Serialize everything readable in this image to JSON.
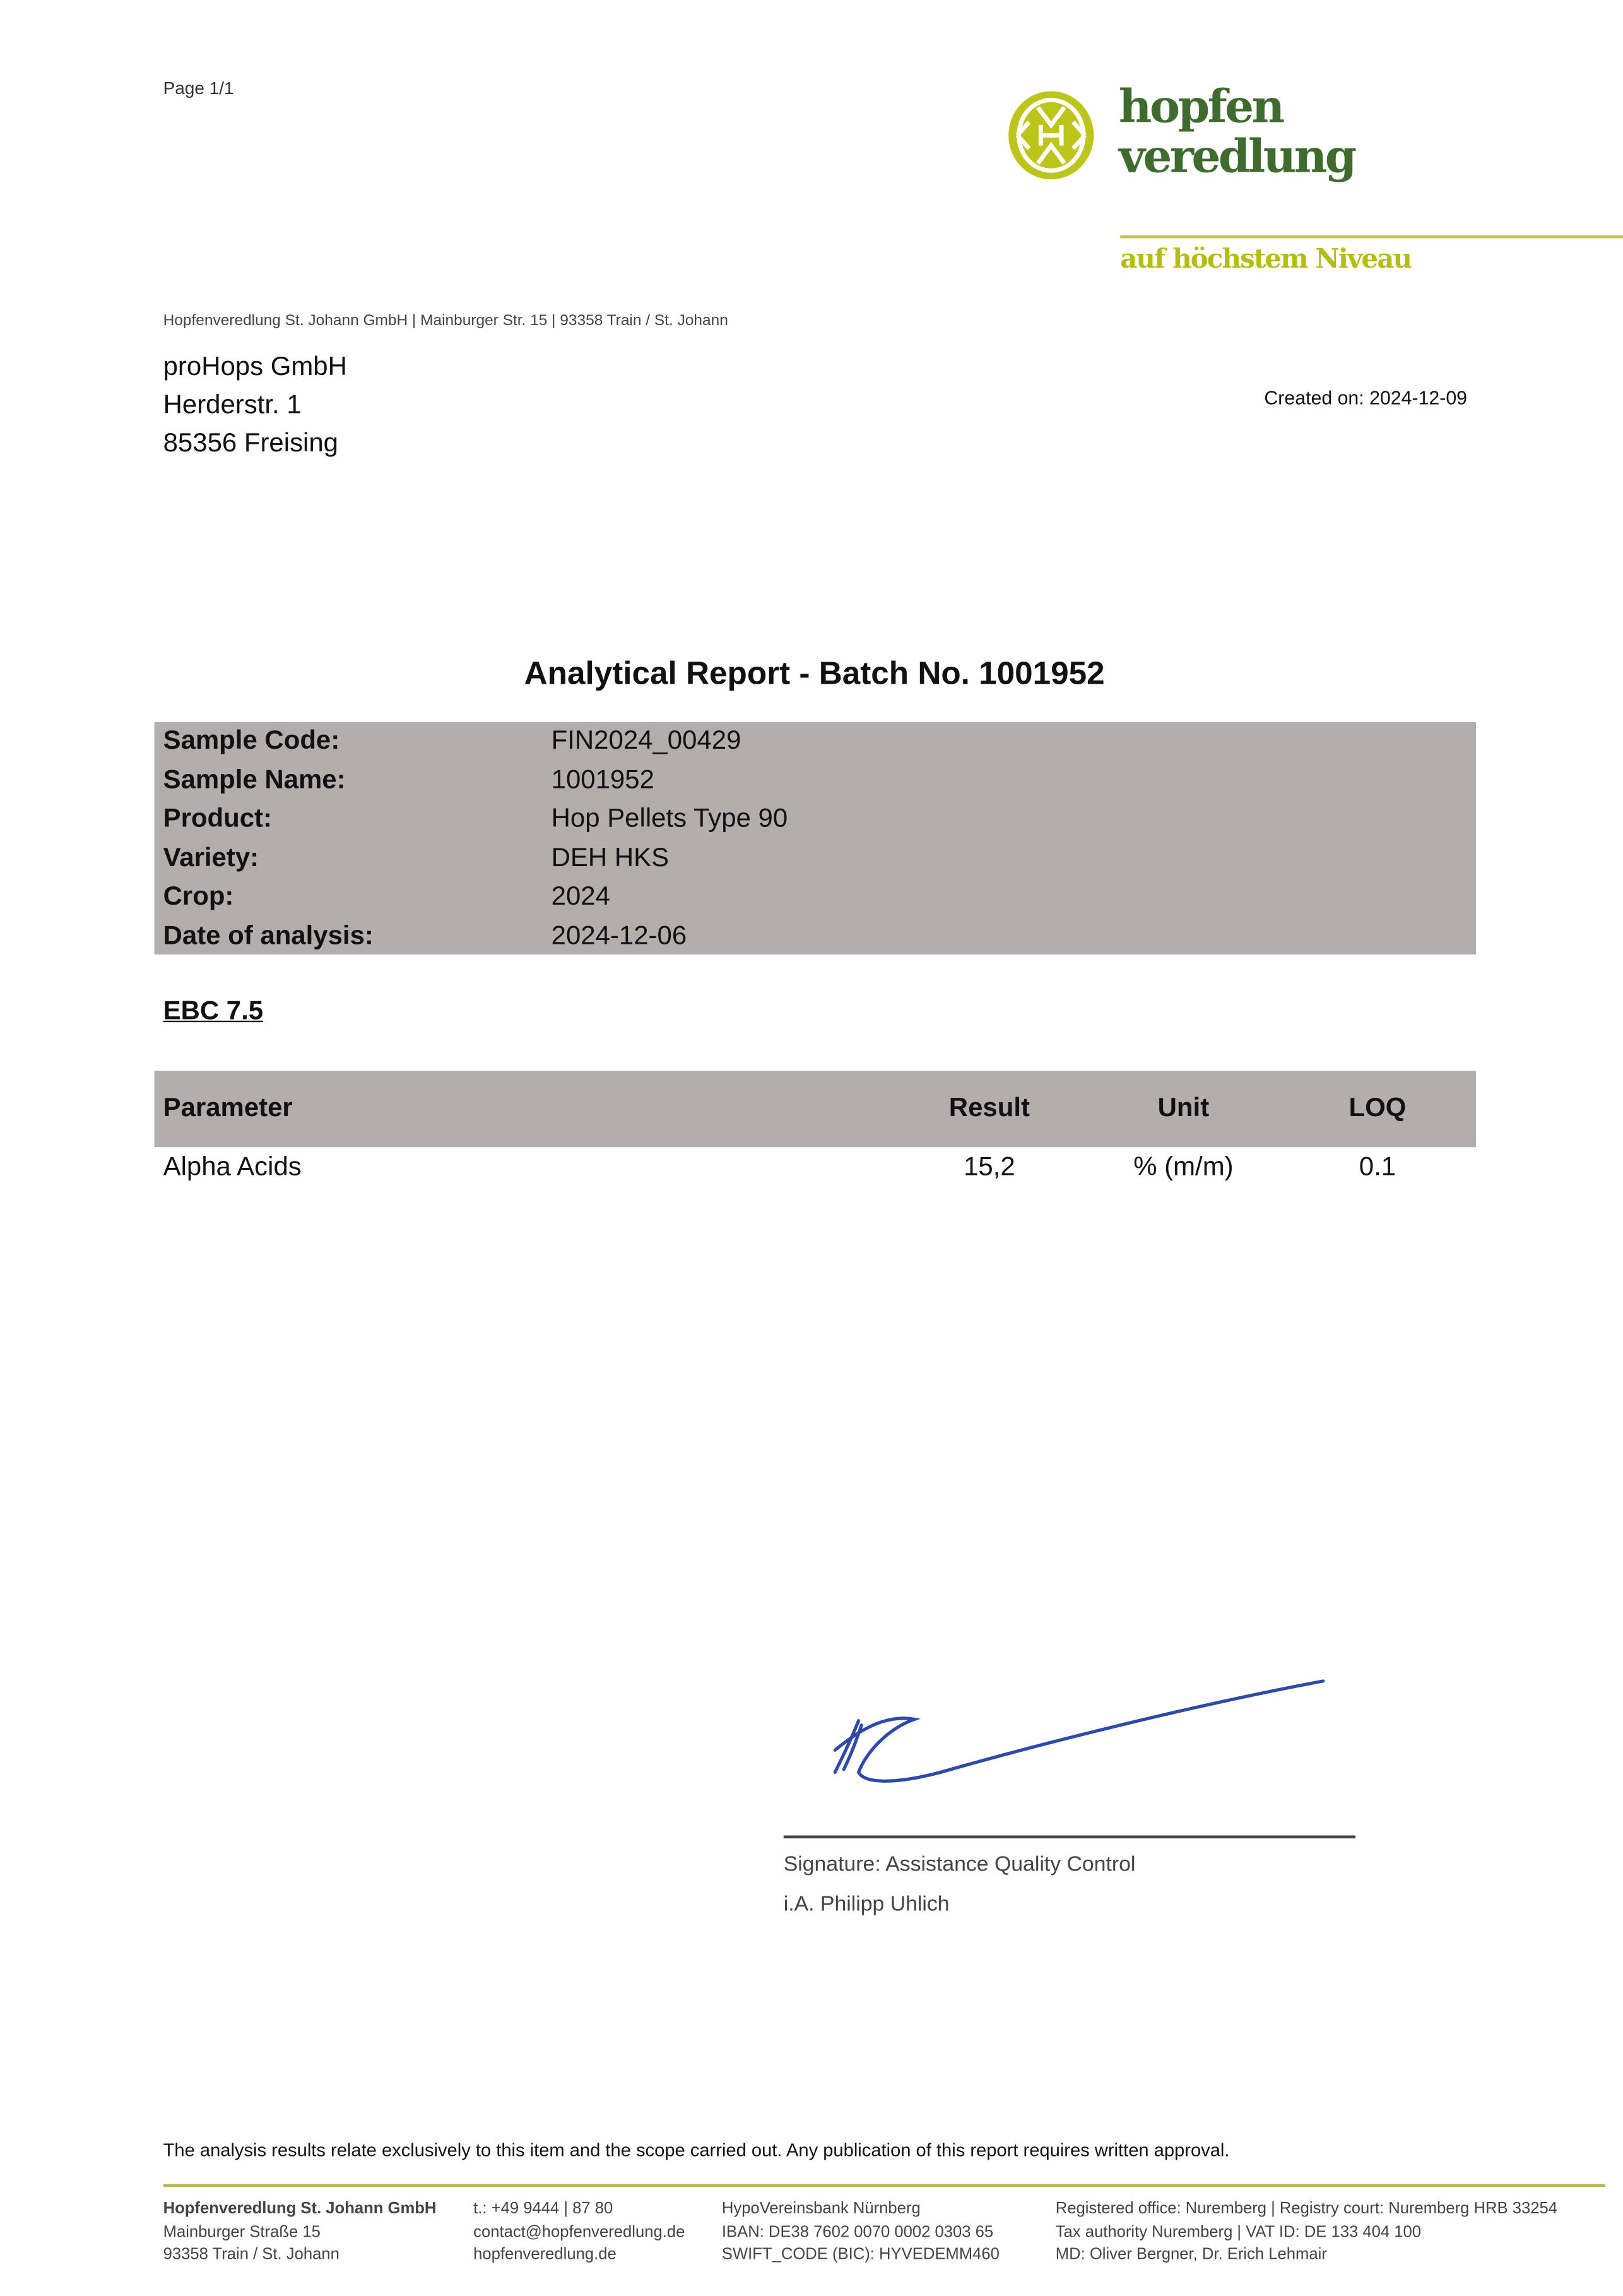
{
  "page_number": "Page 1/1",
  "logo": {
    "line1": "hopfen",
    "line2": "veredlung",
    "tagline": "auf höchstem Niveau",
    "colors": {
      "dark_green": "#3f6b2e",
      "lime": "#b5bd14"
    }
  },
  "sender_line": "Hopfenveredlung St. Johann GmbH | Mainburger Str. 15 | 93358 Train / St. Johann",
  "recipient": [
    "proHops GmbH",
    "Herderstr. 1",
    "85356 Freising"
  ],
  "created_on": "Created on: 2024-12-09",
  "title": "Analytical Report - Batch No. 1001952",
  "sample_info": [
    {
      "label": "Sample Code:",
      "value": "FIN2024_00429"
    },
    {
      "label": "Sample Name:",
      "value": "1001952"
    },
    {
      "label": "Product:",
      "value": "Hop Pellets Type 90"
    },
    {
      "label": "Variety:",
      "value": "DEH HKS"
    },
    {
      "label": "Crop:",
      "value": "2024"
    },
    {
      "label": "Date of analysis:",
      "value": "2024-12-06"
    }
  ],
  "method": "EBC 7.5",
  "results_table": {
    "headers": [
      "Parameter",
      "Result",
      "Unit",
      "LOQ"
    ],
    "rows": [
      [
        "Alpha Acids",
        "15,2",
        "% (m/m)",
        "0.1"
      ]
    ]
  },
  "signature": {
    "role": "Signature: Assistance Quality Control",
    "name": "i.A. Philipp Uhlich"
  },
  "disclaimer": "The analysis results relate exclusively to this item and the scope carried out. Any publication of this report requires written approval.",
  "footer": {
    "col1": [
      "Hopfenveredlung St. Johann GmbH",
      "Mainburger Straße 15",
      "93358 Train / St. Johann"
    ],
    "col2": [
      "t.: +49 9444 | 87 80",
      "contact@hopfenveredlung.de",
      "hopfenveredlung.de"
    ],
    "col3": [
      "HypoVereinsbank Nürnberg",
      "IBAN: DE38 7602 0070 0002 0303 65",
      "SWIFT_CODE (BIC): HYVEDEMM460"
    ],
    "col4": [
      "Registered office: Nuremberg | Registry court: Nuremberg HRB 33254",
      "Tax authority Nuremberg | VAT ID: DE 133 404 100",
      "MD: Oliver Bergner, Dr. Erich Lehmair"
    ]
  }
}
